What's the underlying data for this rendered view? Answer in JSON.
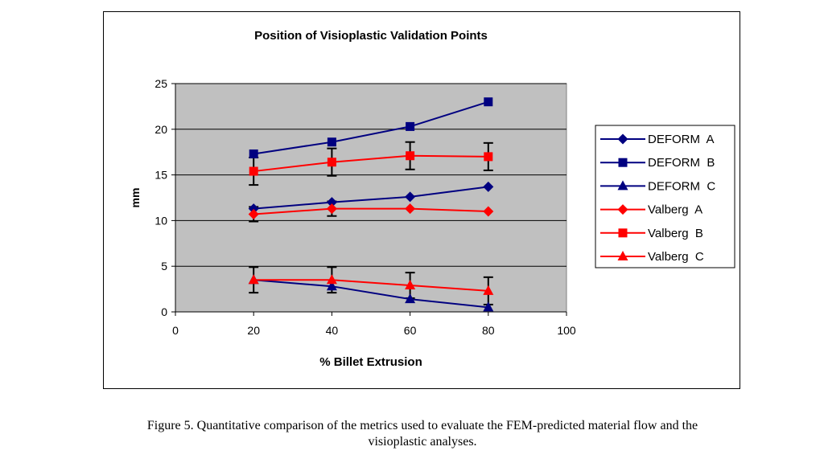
{
  "chart_data": {
    "type": "line",
    "title": "Position of Visioplastic Validation Points",
    "xlabel": "% Billet Extrusion",
    "ylabel": "mm",
    "xlim": [
      0,
      100
    ],
    "ylim": [
      0,
      25
    ],
    "x_ticks": [
      0,
      20,
      40,
      60,
      80,
      100
    ],
    "y_ticks": [
      0,
      5,
      10,
      15,
      20,
      25
    ],
    "grid": "horizontal",
    "legend_position": "right",
    "plot_background": "#c0c0c0",
    "x": [
      20,
      40,
      60,
      80
    ],
    "series": [
      {
        "name": "DEFORM  A",
        "marker": "diamond",
        "color": "#000080",
        "values": [
          11.3,
          12.0,
          12.6,
          13.7
        ],
        "error": null
      },
      {
        "name": "DEFORM  B",
        "marker": "square",
        "color": "#000080",
        "values": [
          17.3,
          18.6,
          20.3,
          23.0
        ],
        "error": null
      },
      {
        "name": "DEFORM  C",
        "marker": "triangle",
        "color": "#000080",
        "values": [
          3.5,
          2.8,
          1.4,
          0.5
        ],
        "error": null
      },
      {
        "name": "Valberg  A",
        "marker": "diamond",
        "color": "#ff0000",
        "values": [
          10.7,
          11.3,
          11.3,
          11.0
        ],
        "error": [
          0.8,
          0.8,
          0.0,
          0.0
        ]
      },
      {
        "name": "Valberg  B",
        "marker": "square",
        "color": "#ff0000",
        "values": [
          15.4,
          16.4,
          17.1,
          17.0
        ],
        "error": [
          1.5,
          1.5,
          1.5,
          1.5
        ]
      },
      {
        "name": "Valberg  C",
        "marker": "triangle",
        "color": "#ff0000",
        "values": [
          3.5,
          3.5,
          2.9,
          2.3
        ],
        "error": [
          1.4,
          1.4,
          1.4,
          1.5
        ]
      }
    ]
  },
  "caption": {
    "line1": "Figure 5.  Quantitative comparison of the metrics used to evaluate the FEM-predicted material flow and the",
    "line2": "visioplastic analyses."
  }
}
